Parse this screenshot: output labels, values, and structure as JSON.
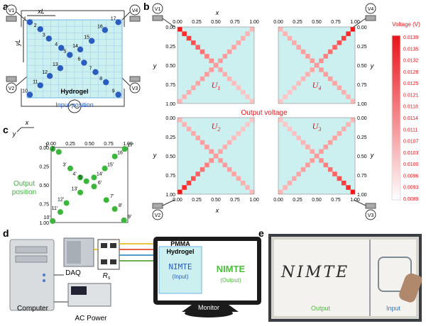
{
  "panels": {
    "a": "a",
    "b": "b",
    "c": "c",
    "d": "d",
    "e": "e"
  },
  "colors": {
    "cell_bg": "#cceff0",
    "grid_blue": "#6fb5e4",
    "dot_blue": "#2a5dbf",
    "dot_green": "#3ab63a",
    "heat_high": "#e8141b",
    "heat_low": "#ffe6e6",
    "sub_green": "#4bbf3a"
  },
  "panel_a": {
    "xl_label": "xL",
    "yl_label": "yL",
    "hydrogel_label": "Hydrogel",
    "input_position_label": "Input position",
    "corner_voltmeters": [
      "V1",
      "V4",
      "V2",
      "V3"
    ],
    "resistor_label": "R",
    "points": [
      {
        "n": "1",
        "x": 0.03,
        "y": 0.03
      },
      {
        "n": "2",
        "x": 0.14,
        "y": 0.12
      },
      {
        "n": "3",
        "x": 0.23,
        "y": 0.24
      },
      {
        "n": "4",
        "x": 0.36,
        "y": 0.36
      },
      {
        "n": "5",
        "x": 0.45,
        "y": 0.45
      },
      {
        "n": "6",
        "x": 0.6,
        "y": 0.55
      },
      {
        "n": "7",
        "x": 0.72,
        "y": 0.67
      },
      {
        "n": "8",
        "x": 0.83,
        "y": 0.8
      },
      {
        "n": "9",
        "x": 0.96,
        "y": 0.96
      },
      {
        "n": "10",
        "x": 0.03,
        "y": 0.96
      },
      {
        "n": "11",
        "x": 0.14,
        "y": 0.84
      },
      {
        "n": "12",
        "x": 0.24,
        "y": 0.72
      },
      {
        "n": "13",
        "x": 0.35,
        "y": 0.62
      },
      {
        "n": "14",
        "x": 0.56,
        "y": 0.38
      },
      {
        "n": "15",
        "x": 0.68,
        "y": 0.27
      },
      {
        "n": "16",
        "x": 0.82,
        "y": 0.13
      },
      {
        "n": "17",
        "x": 0.96,
        "y": 0.03
      }
    ]
  },
  "panel_b": {
    "x_label": "x",
    "y_label": "y",
    "ticks": [
      "0.00",
      "0.25",
      "0.50",
      "0.75",
      "1.00"
    ],
    "maps": [
      {
        "title": "U",
        "sub": "1"
      },
      {
        "title": "U",
        "sub": "4"
      },
      {
        "title": "U",
        "sub": "2"
      },
      {
        "title": "U",
        "sub": "3"
      }
    ],
    "output_voltage_label": "Output voltage",
    "colorbar_title": "Voltage (V)",
    "colorbar_ticks": [
      "0.0139",
      "0.0135",
      "0.0132",
      "0.0128",
      "0.0125",
      "0.0121",
      "0.0118",
      "0.0114",
      "0.0111",
      "0.0107",
      "0.0103",
      "0.0100",
      "0.0096",
      "0.0093",
      "0.0089"
    ],
    "corner_voltmeters": [
      "V1",
      "V4",
      "V2",
      "V3"
    ]
  },
  "panel_c": {
    "x_label": "x",
    "y_label": "y",
    "ticks": [
      "0.00",
      "0.25",
      "0.50",
      "0.75",
      "1.00"
    ],
    "output_position_label": [
      "Output",
      "position"
    ],
    "points": [
      {
        "n": "1'",
        "x": 0.02,
        "y": 0.02
      },
      {
        "n": "2'",
        "x": 0.1,
        "y": 0.06
      },
      {
        "n": "3'",
        "x": 0.25,
        "y": 0.28
      },
      {
        "n": "4'",
        "x": 0.38,
        "y": 0.4
      },
      {
        "n": "5'",
        "x": 0.46,
        "y": 0.45
      },
      {
        "n": "6'",
        "x": 0.56,
        "y": 0.52
      },
      {
        "n": "7'",
        "x": 0.72,
        "y": 0.7
      },
      {
        "n": "8'",
        "x": 0.83,
        "y": 0.82
      },
      {
        "n": "9'",
        "x": 0.95,
        "y": 0.97
      },
      {
        "n": "10'",
        "x": 0.02,
        "y": 0.98
      },
      {
        "n": "11'",
        "x": 0.12,
        "y": 0.86
      },
      {
        "n": "12'",
        "x": 0.2,
        "y": 0.74
      },
      {
        "n": "13'",
        "x": 0.38,
        "y": 0.6
      },
      {
        "n": "14'",
        "x": 0.56,
        "y": 0.4
      },
      {
        "n": "15'",
        "x": 0.7,
        "y": 0.28
      },
      {
        "n": "16'",
        "x": 0.83,
        "y": 0.12
      },
      {
        "n": "17'",
        "x": 0.96,
        "y": 0.02
      }
    ]
  },
  "panel_d": {
    "computer": "Computer",
    "daq": "DAQ",
    "rs": "R",
    "rs_sub": "s",
    "ac_power": "AC Power",
    "pmma": "PMMA",
    "hydrogel": "Hydrogel",
    "nimte_input": "NIMTE",
    "input": "(Input)",
    "nimte_output": "NIMTE",
    "output": "(Output)",
    "monitor": "Monitor"
  },
  "panel_e": {
    "handwriting": "NIMTE",
    "output": "Output",
    "input": "Input"
  }
}
